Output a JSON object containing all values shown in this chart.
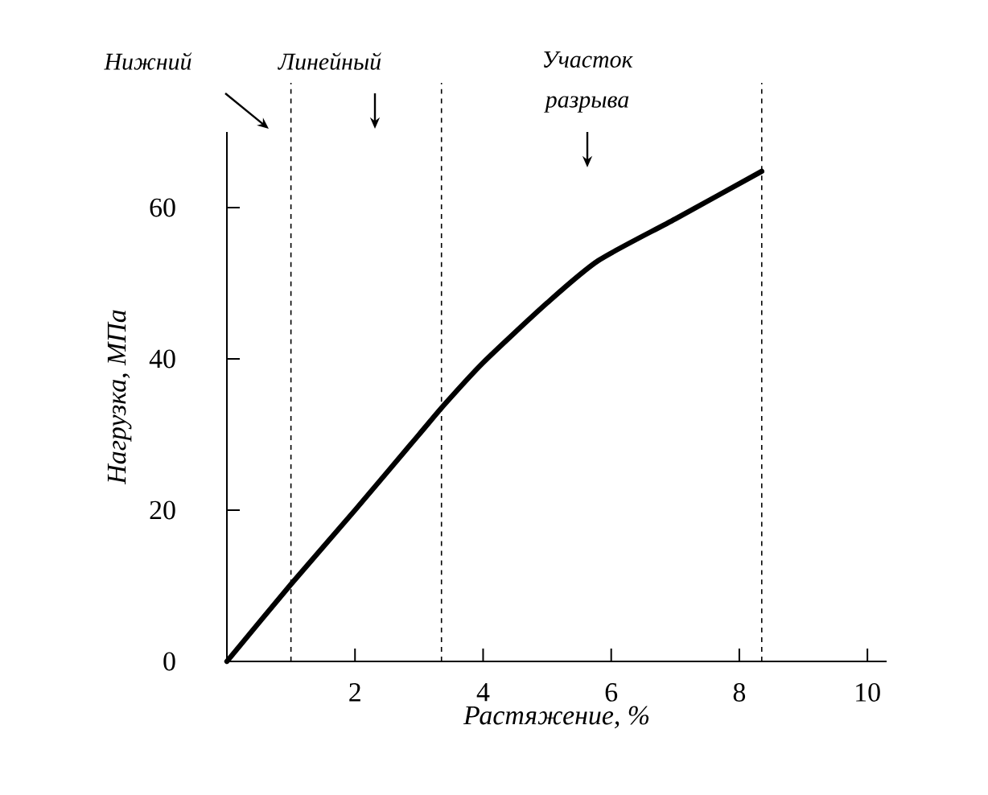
{
  "chart_data": {
    "type": "line",
    "xlabel": "Растяжение, %",
    "ylabel": "Нагрузка, МПа",
    "x": [
      0,
      1,
      2,
      3,
      3.4,
      4,
      5,
      5.8,
      7,
      8.35
    ],
    "series": [
      {
        "color": "#000000",
        "values": [
          0,
          10.2,
          20,
          30,
          34,
          39.5,
          47.4,
          53,
          58.5,
          64.8
        ]
      }
    ],
    "xlim": [
      0,
      10.3
    ],
    "ylim": [
      0,
      70
    ],
    "xticks": [
      2,
      4,
      6,
      8,
      10
    ],
    "yticks": [
      0,
      20,
      40,
      60
    ],
    "ref_lines": [
      {
        "axis": "x",
        "value": 1,
        "line_style": "dashed"
      },
      {
        "axis": "x",
        "value": 3.35,
        "line_style": "dashed"
      },
      {
        "axis": "x",
        "value": 8.35,
        "line_style": "dashed"
      }
    ],
    "annotations": [
      "Нижний",
      "Линейный",
      "Участок разрыва"
    ],
    "marker": "none",
    "line_style": "solid"
  }
}
